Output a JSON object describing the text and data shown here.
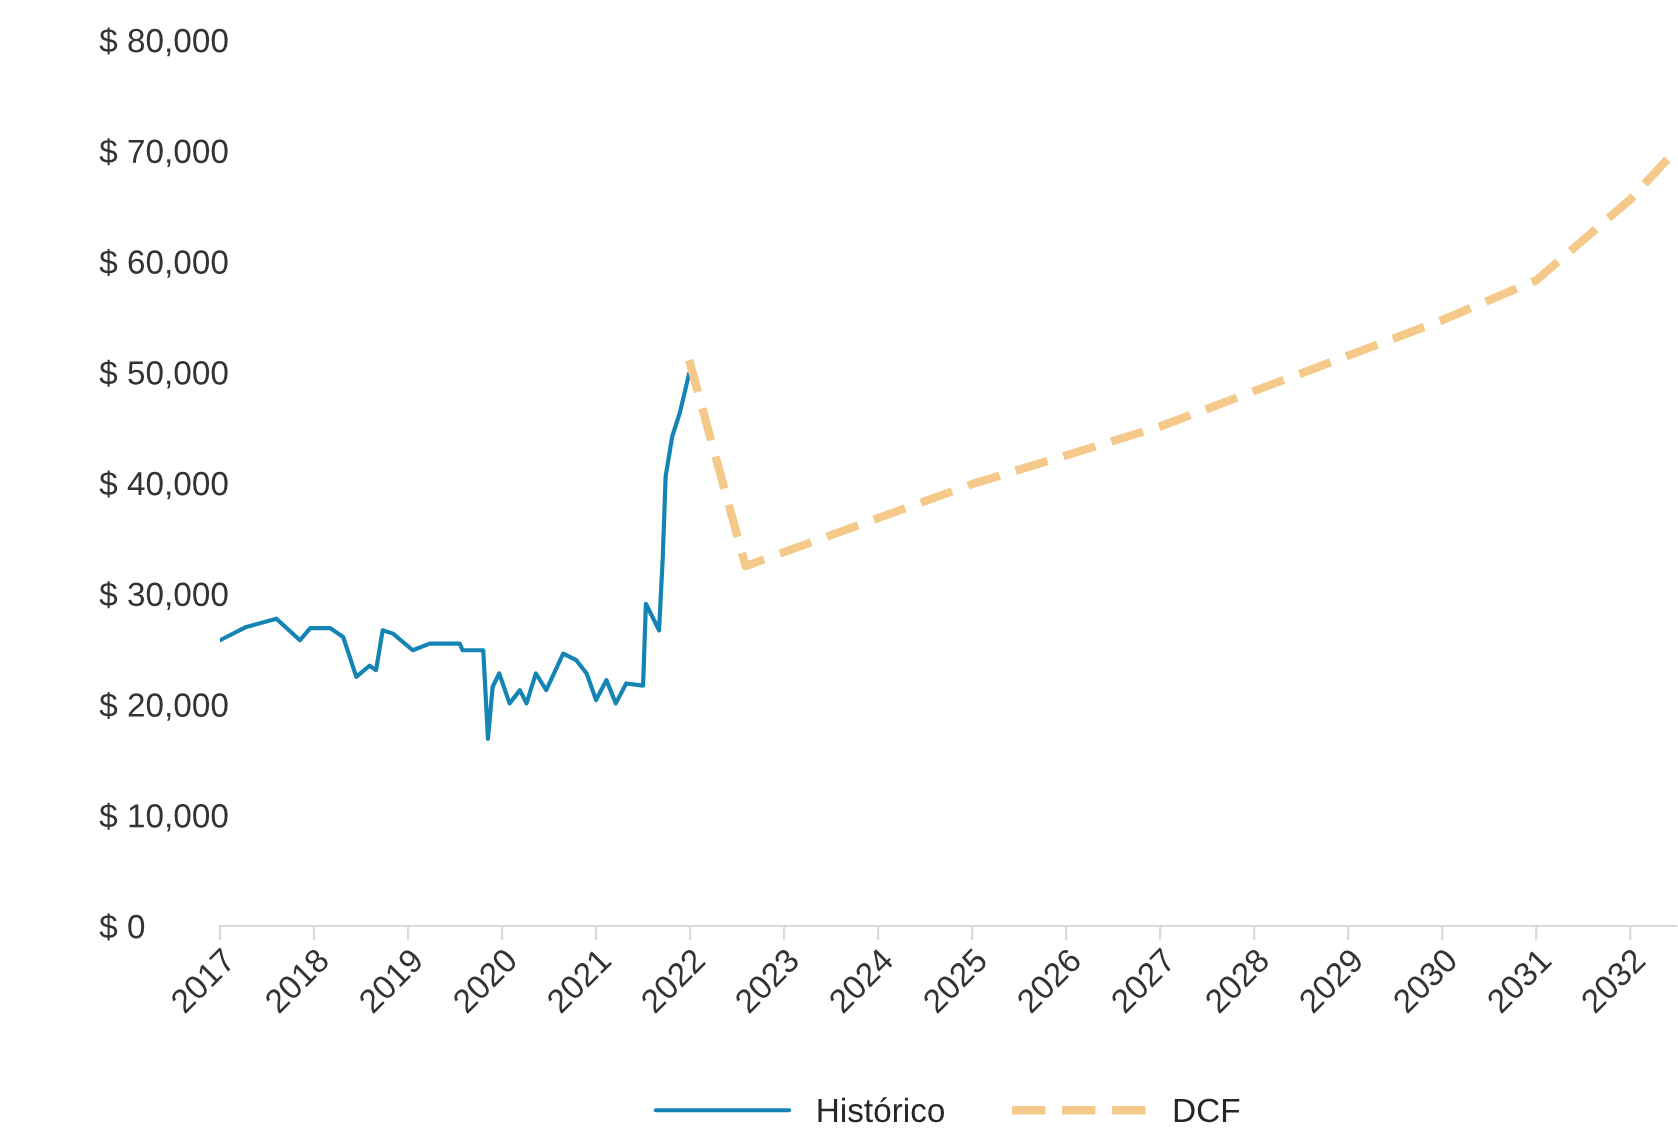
{
  "chart_data": {
    "type": "line",
    "series": [
      {
        "name": "Histórico",
        "color": "#1384b4",
        "line_style": "solid",
        "x": [
          2017.0,
          2017.28,
          2017.6,
          2017.85,
          2017.96,
          2018.17,
          2018.31,
          2018.45,
          2018.59,
          2018.66,
          2018.73,
          2018.84,
          2019.05,
          2019.23,
          2019.55,
          2019.58,
          2019.8,
          2019.85,
          2019.9,
          2019.97,
          2020.08,
          2020.19,
          2020.26,
          2020.36,
          2020.47,
          2020.65,
          2020.79,
          2020.9,
          2021.0,
          2021.11,
          2021.21,
          2021.32,
          2021.5,
          2021.53,
          2021.67,
          2021.71,
          2021.74,
          2021.81,
          2021.89,
          2021.99
        ],
        "values": [
          25800,
          27000,
          27750,
          25800,
          26900,
          26900,
          26100,
          22500,
          23500,
          23100,
          26700,
          26400,
          24900,
          25500,
          25500,
          24900,
          24900,
          16900,
          21600,
          22800,
          20100,
          21300,
          20100,
          22800,
          21300,
          24600,
          24000,
          22800,
          20400,
          22200,
          20100,
          21900,
          21700,
          29100,
          26700,
          33400,
          40600,
          44200,
          46300,
          49900
        ]
      },
      {
        "name": "DCF",
        "color": "#f5c98a",
        "line_style": "dashed",
        "x": [
          2021.99,
          2022.59,
          2025.0,
          2027.0,
          2029.0,
          2030.0,
          2031.0,
          2032.0,
          2032.49
        ],
        "values": [
          51100,
          32500,
          39900,
          45100,
          51500,
          54700,
          58300,
          65600,
          70100
        ]
      }
    ],
    "xlim": [
      2017,
      2032.49
    ],
    "xticks": [
      2017,
      2018,
      2019,
      2020,
      2021,
      2022,
      2023,
      2024,
      2025,
      2026,
      2027,
      2028,
      2029,
      2030,
      2031,
      2032
    ],
    "ylim": [
      0,
      80000
    ],
    "yticks": [
      {
        "value": 0,
        "label": "$ 0"
      },
      {
        "value": 10000,
        "label": "$ 10,000"
      },
      {
        "value": 20000,
        "label": "$ 20,000"
      },
      {
        "value": 30000,
        "label": "$ 30,000"
      },
      {
        "value": 40000,
        "label": "$ 40,000"
      },
      {
        "value": 50000,
        "label": "$ 50,000"
      },
      {
        "value": 60000,
        "label": "$ 60,000"
      },
      {
        "value": 70000,
        "label": "$ 70,000"
      },
      {
        "value": 80000,
        "label": "$ 80,000"
      }
    ],
    "grid": false,
    "legend": "bottom"
  }
}
